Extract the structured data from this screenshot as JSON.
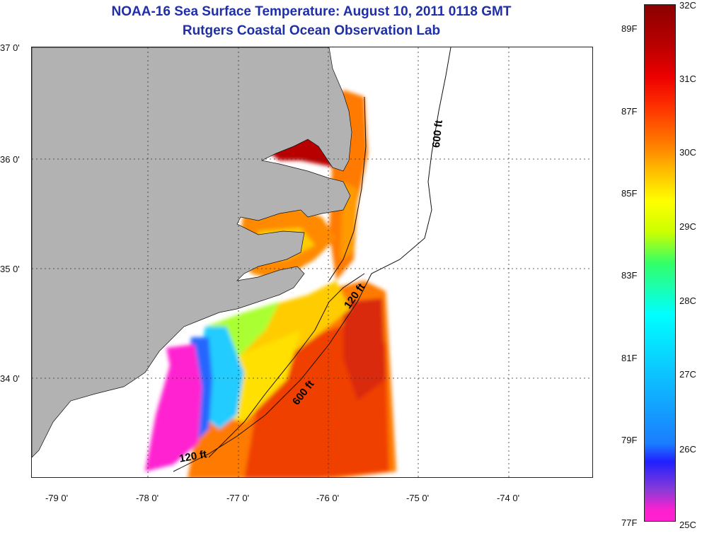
{
  "title": {
    "line1": "NOAA-16 Sea Surface Temperature:  August 10, 2011 0118 GMT",
    "line2": "Rutgers Coastal Ocean Observation Lab"
  },
  "lat_labels": [
    "37 0'",
    "36 0'",
    "35 0'",
    "34 0'"
  ],
  "lon_labels": [
    "-79 0'",
    "-78 0'",
    "-77 0'",
    "-76 0'",
    "-75 0'",
    "-74 0'"
  ],
  "colorbar": {
    "celsius": [
      "32C",
      "31C",
      "30C",
      "29C",
      "28C",
      "27C",
      "26C",
      "25C"
    ],
    "fahrenheit": [
      "89F",
      "87F",
      "85F",
      "83F",
      "81F",
      "79F",
      "77F"
    ]
  },
  "isobaths": {
    "label_600_north": "600 ft",
    "label_120_mid": "120 ft",
    "label_600_south": "600 ft",
    "label_120_south": "120 ft"
  },
  "colors": {
    "land": "#b2b2b2",
    "title": "#1f2fa8",
    "no_data": "#ffffff"
  }
}
